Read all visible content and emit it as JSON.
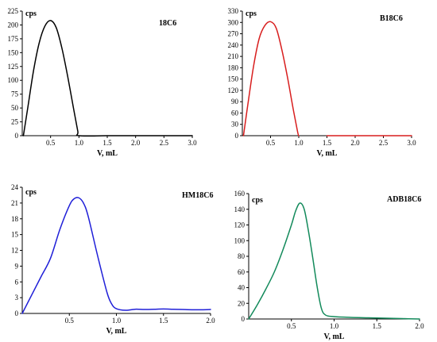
{
  "chart_data": [
    {
      "type": "line",
      "title": "18C6",
      "ylabel": "cps",
      "xlabel": "V, mL",
      "xlim": [
        0,
        3.0
      ],
      "ylim": [
        0,
        225
      ],
      "xticks": [
        "0.5",
        "1.0",
        "1.5",
        "2.0",
        "2.5",
        "3.0"
      ],
      "yticks": [
        "0",
        "25",
        "50",
        "75",
        "100",
        "125",
        "150",
        "175",
        "200",
        "225"
      ],
      "color": "#000000",
      "series": [
        {
          "x": [
            0.02,
            0.1,
            0.2,
            0.3,
            0.4,
            0.5,
            0.6,
            0.7,
            0.8,
            0.9,
            0.98,
            1.0,
            1.5,
            2.0,
            2.5,
            3.0
          ],
          "y": [
            0,
            52,
            118,
            168,
            198,
            208,
            195,
            158,
            108,
            52,
            8,
            0,
            0,
            0,
            0,
            0
          ]
        }
      ]
    },
    {
      "type": "line",
      "title": "B18C6",
      "ylabel": "cps",
      "xlabel": "V, mL",
      "xlim": [
        0,
        3.0
      ],
      "ylim": [
        0,
        330
      ],
      "xticks": [
        "0.5",
        "1.0",
        "1.5",
        "2.0",
        "2.5",
        "3.0"
      ],
      "yticks": [
        "0",
        "30",
        "60",
        "90",
        "120",
        "150",
        "180",
        "210",
        "240",
        "270",
        "300",
        "330"
      ],
      "color": "#d81e1e",
      "series": [
        {
          "x": [
            0.02,
            0.1,
            0.2,
            0.3,
            0.4,
            0.5,
            0.6,
            0.7,
            0.8,
            0.9,
            0.98,
            1.0
          ],
          "y": [
            0,
            85,
            185,
            258,
            292,
            302,
            285,
            228,
            155,
            72,
            10,
            0
          ]
        },
        {
          "x": [
            1.5,
            2.0,
            2.5,
            3.0
          ],
          "y": [
            0,
            0,
            0,
            0
          ]
        }
      ]
    },
    {
      "type": "line",
      "title": "HM18C6",
      "ylabel": "cps",
      "xlabel": "V, mL",
      "xlim": [
        0,
        2.0
      ],
      "ylim": [
        0,
        24
      ],
      "xticks": [
        "0.5",
        "1.0",
        "1.5",
        "2.0"
      ],
      "yticks": [
        "0",
        "3",
        "6",
        "9",
        "12",
        "15",
        "18",
        "21",
        "24"
      ],
      "color": "#1f1fd8",
      "series": [
        {
          "x": [
            0.0,
            0.1,
            0.2,
            0.3,
            0.4,
            0.5,
            0.55,
            0.6,
            0.65,
            0.7,
            0.8,
            0.9,
            0.95,
            1.0,
            1.1,
            1.2,
            1.3,
            1.4,
            1.5,
            1.6,
            1.7,
            1.8,
            1.9,
            2.0
          ],
          "y": [
            0,
            3.5,
            7.0,
            10.5,
            16.0,
            20.5,
            21.8,
            22.0,
            21.0,
            18.5,
            11.0,
            4.0,
            1.8,
            0.9,
            0.6,
            0.8,
            0.75,
            0.8,
            0.85,
            0.8,
            0.75,
            0.7,
            0.7,
            0.75
          ]
        }
      ]
    },
    {
      "type": "line",
      "title": "ADB18C6",
      "ylabel": "cps",
      "xlabel": "V, mL",
      "xlim": [
        0,
        2.0
      ],
      "ylim": [
        0,
        160
      ],
      "xticks": [
        "0.5",
        "1.0",
        "1.5",
        "2.0"
      ],
      "yticks": [
        "0",
        "20",
        "40",
        "60",
        "80",
        "100",
        "120",
        "140",
        "160"
      ],
      "color": "#138a5b",
      "series": [
        {
          "x": [
            0.0,
            0.1,
            0.2,
            0.3,
            0.4,
            0.5,
            0.55,
            0.6,
            0.65,
            0.7,
            0.75,
            0.8,
            0.85,
            0.9,
            1.0,
            1.2,
            1.4,
            1.6,
            1.8,
            2.0
          ],
          "y": [
            0,
            18,
            38,
            60,
            88,
            120,
            138,
            148,
            140,
            112,
            78,
            42,
            14,
            5,
            3,
            2,
            1.5,
            1,
            0.5,
            0
          ]
        }
      ]
    }
  ]
}
